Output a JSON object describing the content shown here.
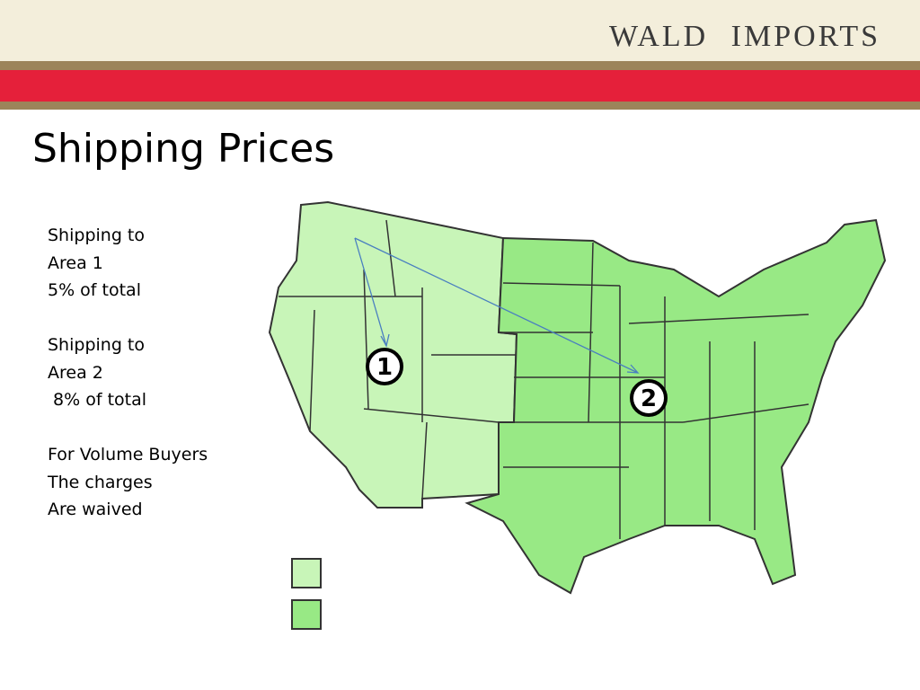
{
  "header": {
    "brand": "WALD IMPORTS"
  },
  "title": "Shipping Prices",
  "body": {
    "blocks": [
      [
        "Shipping to",
        "Area 1",
        "5% of total"
      ],
      [
        "Shipping to",
        "Area 2",
        " 8% of total"
      ],
      [
        "For Volume Buyers",
        "The charges",
        "Are waived"
      ]
    ]
  },
  "map": {
    "markers": [
      "1",
      "2"
    ]
  }
}
